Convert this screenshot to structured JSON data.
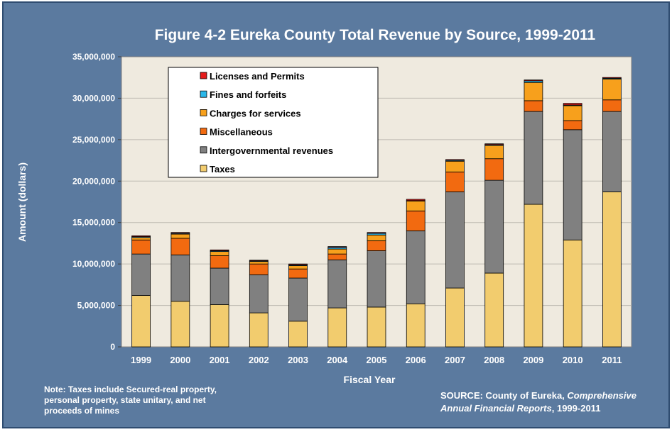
{
  "chart_data": {
    "type": "bar",
    "stacked": true,
    "title": "Figure 4-2 Eureka County Total Revenue by Source, 1999-2011",
    "xlabel": "Fiscal Year",
    "ylabel": "Amount (dollars)",
    "ylim": [
      0,
      35000000
    ],
    "yticks": [
      "0",
      "5,000,000",
      "10,000,000",
      "15,000,000",
      "20,000,000",
      "25,000,000",
      "30,000,000",
      "35,000,000"
    ],
    "grid": true,
    "legend_position": "top-left",
    "categories": [
      "1999",
      "2000",
      "2001",
      "2002",
      "2003",
      "2004",
      "2005",
      "2006",
      "2007",
      "2008",
      "2009",
      "2010",
      "2011"
    ],
    "series": [
      {
        "name": "Taxes",
        "color": "#f2cc6e",
        "values": [
          6200000,
          5500000,
          5100000,
          4100000,
          3100000,
          4700000,
          4800000,
          5200000,
          7100000,
          8900000,
          17200000,
          12900000,
          18700000
        ]
      },
      {
        "name": "Intergovernmental revenues",
        "color": "#808080",
        "values": [
          5000000,
          5600000,
          4400000,
          4600000,
          5200000,
          5800000,
          6800000,
          8800000,
          11600000,
          11200000,
          11200000,
          13300000,
          9700000
        ]
      },
      {
        "name": "Miscellaneous",
        "color": "#f26a10",
        "values": [
          1700000,
          2000000,
          1500000,
          1300000,
          1100000,
          700000,
          1200000,
          2400000,
          2400000,
          2600000,
          1300000,
          1100000,
          1400000
        ]
      },
      {
        "name": "Charges for services",
        "color": "#f7a01c",
        "values": [
          300000,
          500000,
          500000,
          300000,
          400000,
          600000,
          700000,
          1200000,
          1300000,
          1600000,
          2200000,
          1800000,
          2500000
        ]
      },
      {
        "name": "Fines and forfeits",
        "color": "#2ab8ea",
        "values": [
          100000,
          100000,
          100000,
          80000,
          100000,
          200000,
          200000,
          50000,
          100000,
          100000,
          200000,
          80000,
          100000
        ]
      },
      {
        "name": "Licenses and Permits",
        "color": "#e51b1b",
        "values": [
          100000,
          100000,
          100000,
          80000,
          100000,
          100000,
          100000,
          150000,
          100000,
          100000,
          100000,
          200000,
          100000
        ]
      }
    ],
    "legend_order": [
      "Licenses and Permits",
      "Fines and forfeits",
      "Charges for services",
      "Miscellaneous",
      "Intergovernmental revenues",
      "Taxes"
    ]
  },
  "note": {
    "lines": [
      "Note: Taxes include Secured-real property,",
      "personal property, state unitary, and net",
      "proceeds of mines"
    ]
  },
  "source": {
    "line1_prefix": "SOURCE: County of Eureka, ",
    "line1_italic": "Comprehensive",
    "line2_italic": "Annual Financial Reports",
    "line2_suffix": ", 1999-2011"
  },
  "colors": {
    "frame": "#5b7a9f",
    "plot_bg": "#efeadf",
    "grid": "#bdb9b0",
    "text": "#ffffff"
  }
}
